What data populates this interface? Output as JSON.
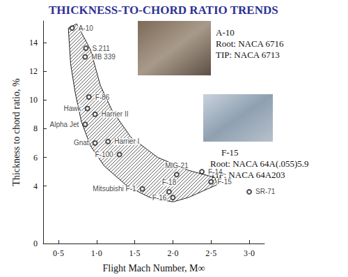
{
  "chart_data": {
    "type": "scatter",
    "title": "THICKNESS-TO-CHORD RATIO TRENDS",
    "x_label": "Flight Mach Number, M∞",
    "y_label": "Thickness to chord ratio, %",
    "labels": [
      "A-10",
      "S.211",
      "MB 339",
      "F-86",
      "Hawk",
      "Harrier II",
      "Alpha Jet",
      "Gnat",
      "Harrier I",
      "F-100",
      "MIG-21",
      "F-14",
      "F-15",
      "Mitsubishi F-1",
      "F-18",
      "F-16",
      "SR-71"
    ],
    "x": [
      0.68,
      0.86,
      0.85,
      0.9,
      0.88,
      0.98,
      0.85,
      0.98,
      1.15,
      1.3,
      2.05,
      2.38,
      2.5,
      1.6,
      1.95,
      2.0,
      3.0
    ],
    "values": [
      15.0,
      13.6,
      13.0,
      10.2,
      9.4,
      9.0,
      8.3,
      7.0,
      7.1,
      6.2,
      4.8,
      5.0,
      4.3,
      3.8,
      3.6,
      3.2,
      3.6
    ],
    "marker": "open_circle",
    "color": "#222222",
    "band": [
      [
        0.74,
        15.3
      ],
      [
        0.92,
        13.5
      ],
      [
        1.05,
        11.0
      ],
      [
        1.2,
        9.3
      ],
      [
        1.45,
        7.4
      ],
      [
        1.8,
        6.0
      ],
      [
        2.2,
        5.1
      ],
      [
        2.55,
        4.6
      ],
      [
        2.58,
        4.1
      ],
      [
        2.2,
        3.2
      ],
      [
        2.0,
        2.9
      ],
      [
        1.7,
        3.2
      ],
      [
        1.4,
        4.0
      ],
      [
        1.1,
        5.4
      ],
      [
        0.92,
        6.8
      ],
      [
        0.8,
        8.5
      ],
      [
        0.72,
        10.5
      ],
      [
        0.66,
        12.5
      ],
      [
        0.63,
        15.0
      ]
    ],
    "annotations": [
      {
        "title": "A-10",
        "lines": [
          "Root: NACA 6716",
          "TIP: NACA 6713"
        ]
      },
      {
        "title": "F-15",
        "lines": [
          "Root: NACA 64A(.055)5.9",
          "TIP: NACA 64A203"
        ]
      }
    ],
    "xlim": [
      0.3,
      3.2
    ],
    "ylim": [
      0,
      15.5
    ],
    "xticks": [
      {
        "value": 0.5,
        "label": "0·5"
      },
      {
        "value": 1.0,
        "label": "1·0"
      },
      {
        "value": 1.5,
        "label": "1·5"
      },
      {
        "value": 2.0,
        "label": "2·0"
      },
      {
        "value": 2.5,
        "label": "2·5"
      },
      {
        "value": 3.0,
        "label": "3·0"
      }
    ],
    "yticks": [
      0,
      4,
      6,
      8,
      10,
      12,
      14
    ],
    "grid": false
  }
}
